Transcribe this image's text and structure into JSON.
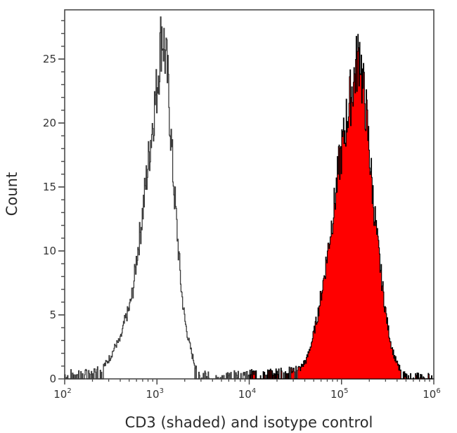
{
  "chart_data": {
    "type": "histogram",
    "title": "",
    "xlabel": "CD3 (shaded) and isotype control",
    "ylabel": "Count",
    "xscale": "log",
    "xlim": [
      100,
      1000000
    ],
    "ylim": [
      0,
      28
    ],
    "grid": false,
    "legend": null,
    "x_ticks": [
      {
        "value": 100,
        "base": "10",
        "exp": "2"
      },
      {
        "value": 1000,
        "base": "10",
        "exp": "3"
      },
      {
        "value": 10000,
        "base": "10",
        "exp": "4"
      },
      {
        "value": 100000,
        "base": "10",
        "exp": "5"
      },
      {
        "value": 1000000,
        "base": "10",
        "exp": "6"
      }
    ],
    "y_ticks": [
      0,
      5,
      10,
      15,
      20,
      25
    ],
    "series": [
      {
        "name": "Isotype control",
        "style": "outline",
        "stroke": "#3a3a3a",
        "fill": "none",
        "log10_x": [
          2.0,
          2.1,
          2.2,
          2.3,
          2.4,
          2.45,
          2.5,
          2.55,
          2.6,
          2.65,
          2.7,
          2.74,
          2.78,
          2.82,
          2.86,
          2.9,
          2.93,
          2.96,
          2.99,
          3.02,
          3.05,
          3.08,
          3.11,
          3.14,
          3.17,
          3.2,
          3.23,
          3.26,
          3.3,
          3.34,
          3.38,
          3.42,
          3.46,
          3.5,
          3.6,
          3.8,
          4.0
        ],
        "counts": [
          0.3,
          0.5,
          0.4,
          0.6,
          0.8,
          1.2,
          1.8,
          2.6,
          3.0,
          4.5,
          5.5,
          7.0,
          9.5,
          11.5,
          14.0,
          16.5,
          18.5,
          20.5,
          22.0,
          24.5,
          27.0,
          25.5,
          23.5,
          20.0,
          16.0,
          13.0,
          10.0,
          7.0,
          4.5,
          3.0,
          1.8,
          0.8,
          0.4,
          0.3,
          0.2,
          0.3,
          0.4
        ]
      },
      {
        "name": "CD3",
        "style": "filled",
        "stroke": "#000000",
        "fill": "#ff0000",
        "log10_x": [
          4.0,
          4.2,
          4.4,
          4.55,
          4.62,
          4.68,
          4.74,
          4.8,
          4.86,
          4.92,
          4.97,
          5.02,
          5.06,
          5.1,
          5.14,
          5.18,
          5.2,
          5.22,
          5.26,
          5.3,
          5.34,
          5.38,
          5.42,
          5.46,
          5.5,
          5.54,
          5.58,
          5.62,
          5.66,
          5.7,
          5.8,
          6.0
        ],
        "counts": [
          0.4,
          0.5,
          0.6,
          0.8,
          1.5,
          3.0,
          5.0,
          7.5,
          10.5,
          13.5,
          16.5,
          18.5,
          20.5,
          22.0,
          23.5,
          25.0,
          25.6,
          23.0,
          21.0,
          17.5,
          14.0,
          11.0,
          8.5,
          6.0,
          4.0,
          2.5,
          1.5,
          0.8,
          0.4,
          0.2,
          0.2,
          0.2
        ]
      }
    ]
  },
  "colors": {
    "axis": "#4a4a4a",
    "cd3_fill": "#ff0000",
    "cd3_stroke": "#000000",
    "isotype_stroke": "#3a3a3a"
  }
}
